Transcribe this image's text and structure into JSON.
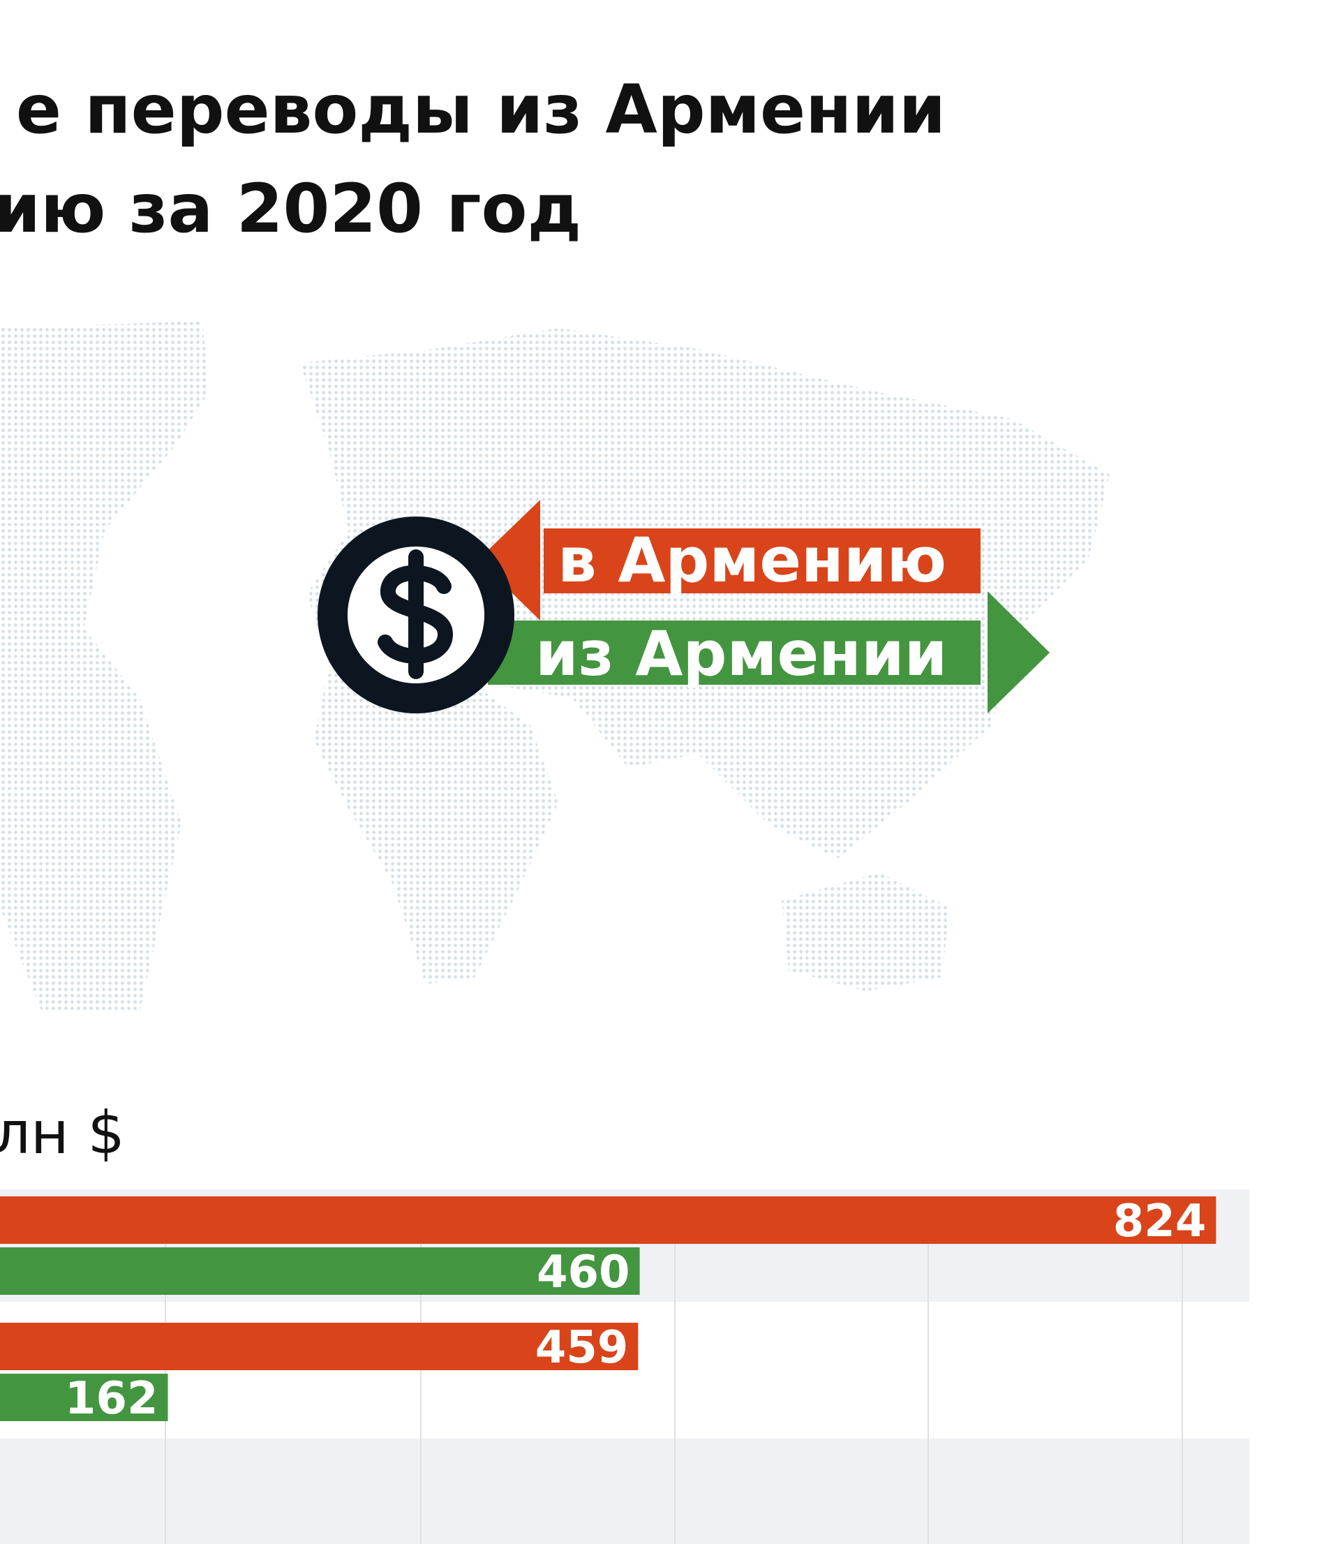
{
  "chart_data": {
    "type": "bar",
    "orientation": "horizontal",
    "title_lines": [
      "е переводы из Армении",
      "ию за 2020 год"
    ],
    "units": "лн $",
    "categories": [
      null,
      null
    ],
    "series": [
      {
        "name": "в Армению",
        "color": "#d9441a",
        "values": [
          824,
          459
        ]
      },
      {
        "name": "из Армении",
        "color": "#43953f",
        "values": [
          460,
          162
        ]
      }
    ],
    "xlim": [
      0,
      845
    ],
    "value_labels_position": "inside-end"
  }
}
